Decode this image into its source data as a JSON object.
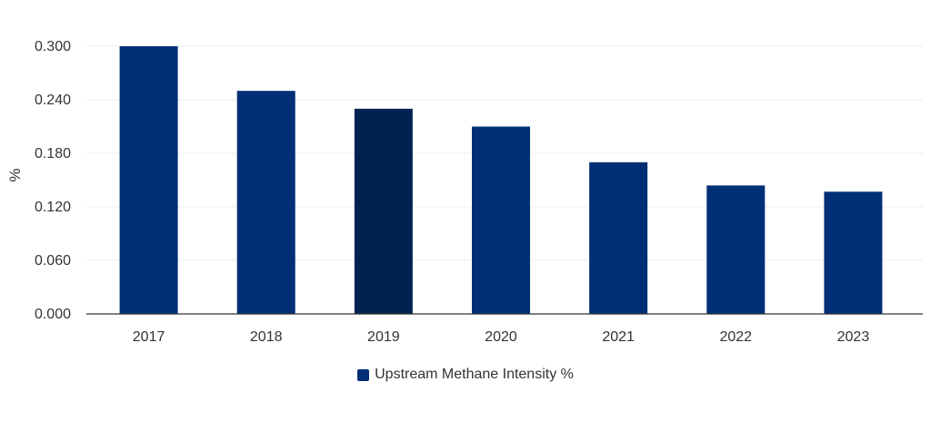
{
  "chart_data": {
    "type": "bar",
    "title": "",
    "xlabel": "",
    "ylabel": "%",
    "ylim": [
      0,
      0.3
    ],
    "yticks": [
      "0.000",
      "0.060",
      "0.120",
      "0.180",
      "0.240",
      "0.300"
    ],
    "ytick_values": [
      0,
      0.06,
      0.12,
      0.18,
      0.24,
      0.3
    ],
    "categories": [
      "2017",
      "2018",
      "2019",
      "2020",
      "2021",
      "2022",
      "2023"
    ],
    "series": [
      {
        "name": "Upstream Methane Intensity %",
        "values": [
          0.3,
          0.25,
          0.23,
          0.21,
          0.17,
          0.144,
          0.137
        ]
      }
    ],
    "grid": true,
    "legend_position": "bottom-center",
    "colors": {
      "bar": "#002f75",
      "bar_highlight": "#00224f",
      "grid": "#e9ecef",
      "axis": "#333333"
    },
    "highlight_index": 2
  }
}
